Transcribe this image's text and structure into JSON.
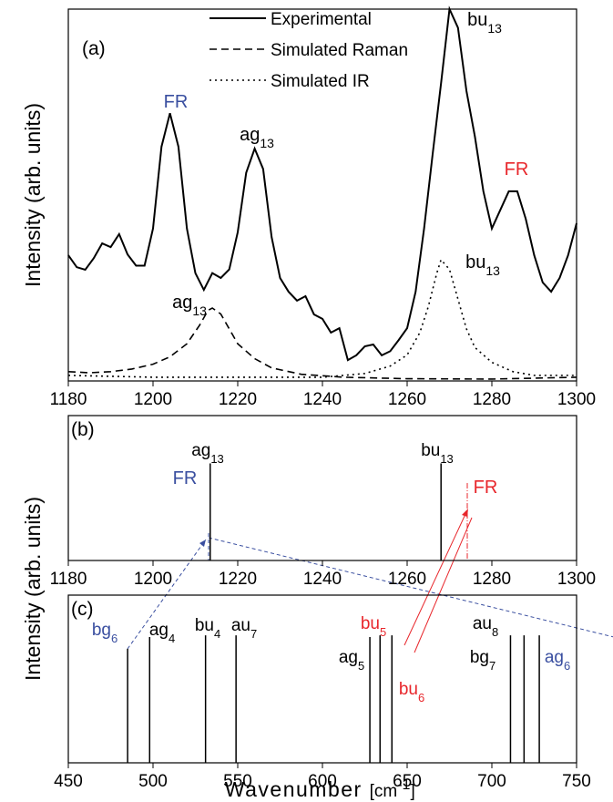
{
  "chart_data": [
    {
      "type": "line",
      "panel": "(a)",
      "ylabel": "Intensity (arb. units)",
      "xlim": [
        1180,
        1300
      ],
      "xticks": [
        1180,
        1200,
        1220,
        1240,
        1260,
        1280,
        1300
      ],
      "ylim": [
        0,
        100
      ],
      "legend": "top-center",
      "series": [
        {
          "name": "Experimental",
          "color": "#000000",
          "dash": "solid",
          "x": [
            1180,
            1182,
            1184,
            1186,
            1188,
            1190,
            1192,
            1194,
            1196,
            1198,
            1200,
            1202,
            1204,
            1206,
            1208,
            1210,
            1212,
            1214,
            1216,
            1218,
            1220,
            1222,
            1224,
            1226,
            1228,
            1230,
            1232,
            1234,
            1236,
            1238,
            1240,
            1242,
            1244,
            1246,
            1248,
            1250,
            1252,
            1254,
            1256,
            1258,
            1260,
            1262,
            1264,
            1266,
            1268,
            1270,
            1272,
            1274,
            1276,
            1278,
            1280,
            1282,
            1284,
            1286,
            1288,
            1290,
            1292,
            1294,
            1296,
            1298,
            1300
          ],
          "values": [
            33.8,
            30.6,
            29.9,
            33,
            37,
            36,
            39.5,
            34,
            31,
            31,
            41,
            63,
            72,
            63,
            41,
            29,
            24.5,
            29,
            27.7,
            30,
            40,
            56,
            62.5,
            57,
            38.7,
            27.7,
            24,
            21.6,
            22.8,
            17.9,
            16.7,
            13,
            14.2,
            5.6,
            6.9,
            9.3,
            9.8,
            6.9,
            8,
            11,
            14.2,
            24,
            41,
            60.8,
            80,
            100,
            95,
            78,
            65.7,
            51,
            41,
            46,
            51,
            51,
            43.6,
            33.8,
            26.5,
            24,
            27.7,
            33.8,
            42.4
          ]
        },
        {
          "name": "Simulated Raman",
          "color": "#000000",
          "dash": "dashed",
          "x": [
            1180,
            1185,
            1190,
            1195,
            1200,
            1204,
            1208,
            1211,
            1213,
            1214,
            1216,
            1218,
            1220,
            1224,
            1228,
            1235,
            1245,
            1260,
            1280,
            1300
          ],
          "values": [
            2.5,
            2.2,
            2.5,
            3.2,
            4.5,
            6.5,
            10,
            15,
            19,
            19.6,
            18,
            14,
            10,
            6,
            3.5,
            1.8,
            1,
            0.6,
            0.5,
            1
          ]
        },
        {
          "name": "Simulated IR",
          "color": "#000000",
          "dash": "dotted",
          "x": [
            1180,
            1200,
            1240,
            1250,
            1256,
            1260,
            1263,
            1265,
            1267,
            1268,
            1270,
            1272,
            1274,
            1276,
            1280,
            1285,
            1290,
            1300
          ],
          "values": [
            1.5,
            1,
            1,
            2,
            4,
            7,
            13,
            20,
            29,
            32.6,
            30,
            22,
            14,
            9,
            5,
            2.5,
            1.5,
            1.5
          ]
        }
      ],
      "annotations": [
        {
          "text": "FR",
          "color": "#3a4fa0"
        },
        {
          "text": "ag",
          "sub": "13",
          "color": "#000000"
        },
        {
          "text": "bu",
          "sub": "13",
          "color": "#000000"
        },
        {
          "text": "FR",
          "color": "#e8262b"
        },
        {
          "text": "bu",
          "sub": "13",
          "color": "#000000"
        },
        {
          "text": "ag",
          "sub": "13",
          "color": "#000000"
        }
      ]
    },
    {
      "type": "stick",
      "panel": "(b)",
      "ylabel": "Intensity (arb. units)",
      "xlim": [
        1180,
        1300
      ],
      "xticks": [
        1180,
        1200,
        1220,
        1240,
        1260,
        1280,
        1300
      ],
      "ylim": [
        0,
        100
      ],
      "x": [
        1213.5,
        1268
      ],
      "values": [
        67,
        67
      ],
      "labels": [
        {
          "text": "ag",
          "sub": "13",
          "color": "#000000"
        },
        {
          "text": "bu",
          "sub": "13",
          "color": "#000000"
        }
      ],
      "annotations": [
        {
          "text": "FR",
          "color": "#3a4fa0"
        },
        {
          "text": "FR",
          "color": "#e8262b"
        }
      ]
    },
    {
      "type": "stick",
      "panel": "(c)",
      "xlabel": {
        "main": "Wavenumber ",
        "unit": "[cm",
        "sup": "-1",
        "end": "]"
      },
      "xlim": [
        450,
        750
      ],
      "xticks": [
        450,
        500,
        550,
        600,
        650,
        700,
        750
      ],
      "ylim": [
        0,
        100
      ],
      "x": [
        485,
        498,
        531,
        549,
        628,
        634,
        641,
        711,
        719,
        728
      ],
      "values": [
        68,
        75,
        76,
        76,
        75,
        76,
        76,
        76,
        76,
        76
      ],
      "labels": [
        {
          "text": "bg",
          "sub": "6",
          "color": "#3a4fa0"
        },
        {
          "text": "ag",
          "sub": "4",
          "color": "#000000"
        },
        {
          "text": "bu",
          "sub": "4",
          "color": "#000000"
        },
        {
          "text": "au",
          "sub": "7",
          "color": "#000000"
        },
        {
          "text": "ag",
          "sub": "5",
          "color": "#000000"
        },
        {
          "text": "bu",
          "sub": "5",
          "color": "#e8262b"
        },
        {
          "text": "bu",
          "sub": "6",
          "color": "#e8262b"
        },
        {
          "text": "bg",
          "sub": "7",
          "color": "#000000"
        },
        {
          "text": "au",
          "sub": "8",
          "color": "#000000"
        },
        {
          "text": "ag",
          "sub": "6",
          "color": "#3a4fa0"
        }
      ]
    }
  ]
}
